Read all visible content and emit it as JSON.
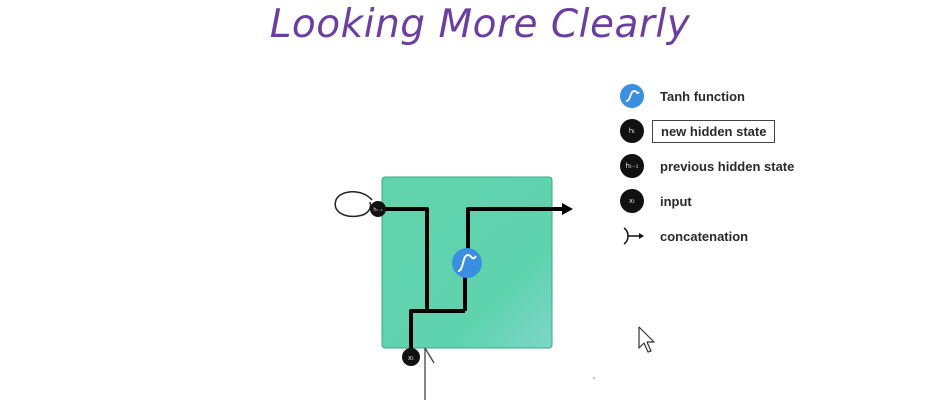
{
  "title": "Looking More Clearly",
  "diagram": {
    "h_prev_symbol": "hₜ₋₁",
    "x_symbol": "xₜ",
    "colors": {
      "cell": "#5fd3ae",
      "cell_border": "#3aa882",
      "tanh": "#3b8fe0",
      "title": "#6b3fa0",
      "line": "#000000"
    }
  },
  "legend": [
    {
      "icon": "tanh-icon",
      "symbol": "",
      "label": "Tanh function"
    },
    {
      "icon": "h-t-dot",
      "symbol": "hₜ",
      "label": "new hidden state"
    },
    {
      "icon": "h-t-1-dot",
      "symbol": "hₜ₋₁",
      "label": "previous hidden state"
    },
    {
      "icon": "x-t-dot",
      "symbol": "xₜ",
      "label": "input"
    },
    {
      "icon": "concatenation-icon",
      "symbol": "",
      "label": "concatenation"
    }
  ]
}
